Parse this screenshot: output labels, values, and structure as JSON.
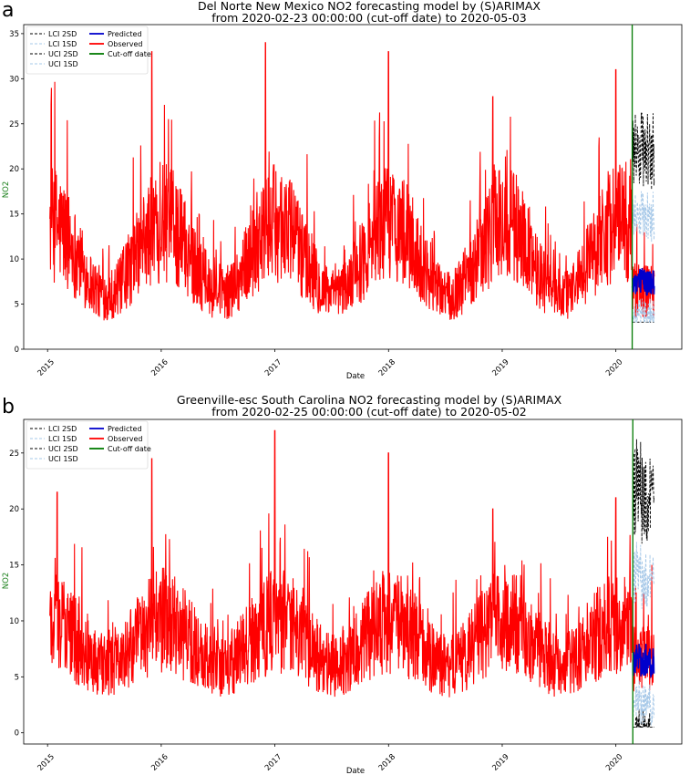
{
  "chart_data": [
    {
      "type": "line",
      "panel_label": "a",
      "title_line1": "Del Norte New Mexico NO2 forecasting model by (S)ARIMAX",
      "title_line2": "from 2020-02-23 00:00:00 (cut-off date) to 2020-05-03",
      "xlabel": "Date",
      "ylabel": "NO2",
      "ylim": [
        0,
        36
      ],
      "yticks": [
        0,
        5,
        10,
        15,
        20,
        25,
        30,
        35
      ],
      "xticks": [
        "2015",
        "2016",
        "2017",
        "2018",
        "2019",
        "2020"
      ],
      "cutoff": "2020-02-23",
      "forecast_end": "2020-05-03",
      "legend_position": "top-left",
      "legend": [
        {
          "label": "LCI 2SD",
          "color": "#000000",
          "style": "dashed"
        },
        {
          "label": "LCI 1SD",
          "color": "#a6c8e8",
          "style": "dashed"
        },
        {
          "label": "UCI 2SD",
          "color": "#000000",
          "style": "dashed"
        },
        {
          "label": "UCI 1SD",
          "color": "#a6c8e8",
          "style": "dashed"
        },
        {
          "label": "Predicted",
          "color": "#0000cc",
          "style": "solid"
        },
        {
          "label": "Observed",
          "color": "#ff0000",
          "style": "solid"
        },
        {
          "label": "Cut-off date",
          "color": "#007a00",
          "style": "solid"
        }
      ],
      "observed_seasonal_pattern": {
        "peaks": [
          [
            "2015-01",
            31
          ],
          [
            "2015-12",
            33
          ],
          [
            "2016-12",
            34
          ],
          [
            "2018-01",
            33
          ],
          [
            "2018-12",
            28
          ],
          [
            "2020-01",
            31
          ]
        ],
        "summer_low": 5,
        "winter_mean": 14,
        "summer_mean": 6
      },
      "forecast": {
        "predicted_mean": 7.5,
        "uci_2sd_max": 25.5,
        "lci_2sd_min": 3
      }
    },
    {
      "type": "line",
      "panel_label": "b",
      "title_line1": "Greenville-esc South Carolina NO2 forecasting model by (S)ARIMAX",
      "title_line2": "from 2020-02-25 00:00:00 (cut-off date) to 2020-05-02",
      "xlabel": "Date",
      "ylabel": "NO2",
      "ylim": [
        -1,
        28
      ],
      "yticks": [
        0,
        5,
        10,
        15,
        20,
        25
      ],
      "xticks": [
        "2015",
        "2016",
        "2017",
        "2018",
        "2019",
        "2020"
      ],
      "cutoff": "2020-02-25",
      "forecast_end": "2020-05-02",
      "legend_position": "top-left",
      "legend": [
        {
          "label": "LCI 2SD",
          "color": "#000000",
          "style": "dashed"
        },
        {
          "label": "LCI 1SD",
          "color": "#a6c8e8",
          "style": "dashed"
        },
        {
          "label": "UCI 2SD",
          "color": "#000000",
          "style": "dashed"
        },
        {
          "label": "UCI 1SD",
          "color": "#a6c8e8",
          "style": "dashed"
        },
        {
          "label": "Predicted",
          "color": "#0000cc",
          "style": "solid"
        },
        {
          "label": "Observed",
          "color": "#ff0000",
          "style": "solid"
        },
        {
          "label": "Cut-off date",
          "color": "#007a00",
          "style": "solid"
        }
      ],
      "observed_seasonal_pattern": {
        "peaks": [
          [
            "2015-02",
            21.5
          ],
          [
            "2015-12",
            24.5
          ],
          [
            "2017-01",
            27
          ],
          [
            "2018-01",
            25
          ],
          [
            "2018-12",
            20
          ],
          [
            "2020-01",
            21
          ]
        ],
        "summer_low": 2,
        "winter_mean": 10,
        "summer_mean": 6
      },
      "forecast": {
        "predicted_mean": 6.5,
        "uci_2sd_max": 25,
        "lci_2sd_min": 0.5
      }
    }
  ]
}
